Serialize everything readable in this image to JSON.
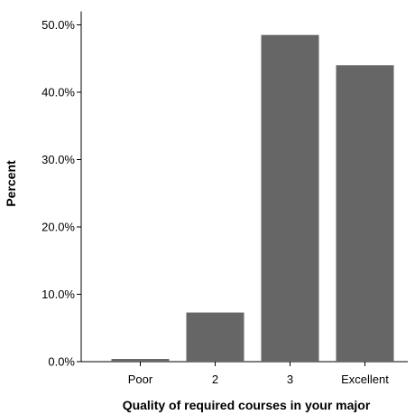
{
  "chart_data": {
    "type": "bar",
    "categories": [
      "Poor",
      "2",
      "3",
      "Excellent"
    ],
    "values": [
      0.4,
      7.3,
      48.5,
      44.0
    ],
    "xlabel": "Quality of required courses in your major",
    "ylabel": "Percent",
    "ylim": [
      0,
      52
    ],
    "yticks": [
      0,
      10,
      20,
      30,
      40,
      50
    ],
    "ytick_labels": [
      "0.0%",
      "10.0%",
      "20.0%",
      "30.0%",
      "40.0%",
      "50.0%"
    ],
    "bar_color": "#666666",
    "grid": false,
    "legend": "none"
  }
}
